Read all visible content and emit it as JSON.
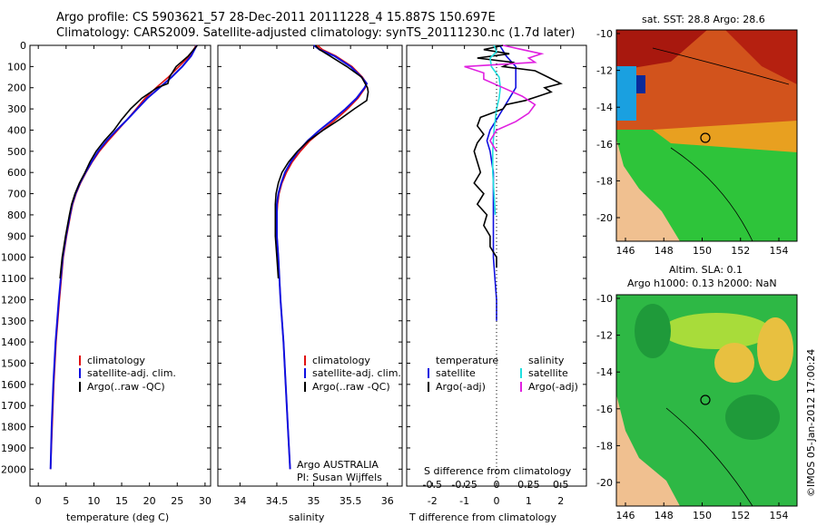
{
  "titles": {
    "line1": "Argo profile: CS 5903621_57 28-Dec-2011 20111228_4 15.887S 150.697E",
    "line2": "Climatology: CARS2009. Satellite-adjusted climatology: synTS_20111230.nc (1.7d later)"
  },
  "colors": {
    "clim": "#e01010",
    "sat": "#1010e0",
    "argo": "#000000",
    "sat_s": "#20e0e0",
    "argo_s": "#e020e0"
  },
  "chart_data": [
    {
      "type": "line",
      "name": "temperature",
      "xlabel": "temperature (deg C)",
      "ylabel": "depth",
      "xlim": [
        -1.5,
        31
      ],
      "ylim": [
        2080,
        0
      ],
      "xticks": [
        0,
        5,
        10,
        15,
        20,
        25,
        30
      ],
      "yticks": [
        0,
        100,
        200,
        300,
        400,
        500,
        600,
        700,
        800,
        900,
        1000,
        1100,
        1200,
        1300,
        1400,
        1500,
        1600,
        1700,
        1800,
        1900,
        2000
      ],
      "legend": [
        "climatology",
        "satellite-adj. clim.",
        "Argo(..raw -QC)"
      ],
      "series": [
        {
          "name": "climatology",
          "depth": [
            0,
            50,
            100,
            150,
            200,
            250,
            300,
            350,
            400,
            450,
            500,
            550,
            600,
            650,
            700,
            750,
            800,
            900,
            1000,
            1200,
            1400,
            1600,
            1800,
            2000
          ],
          "values": [
            28.4,
            27.2,
            25.3,
            23.4,
            21.2,
            19.2,
            17.6,
            16.0,
            14.3,
            12.6,
            11.0,
            9.7,
            8.6,
            7.6,
            6.8,
            6.2,
            5.8,
            5.1,
            4.5,
            3.8,
            3.2,
            2.8,
            2.5,
            2.2
          ]
        },
        {
          "name": "satellite-adj. clim.",
          "depth": [
            0,
            50,
            100,
            150,
            200,
            250,
            300,
            350,
            400,
            450,
            500,
            550,
            600,
            650,
            700,
            750,
            800,
            900,
            1000,
            1200,
            1400,
            1600,
            1800,
            2000
          ],
          "values": [
            28.5,
            27.5,
            25.9,
            24.0,
            21.8,
            19.6,
            17.8,
            16.0,
            14.1,
            12.3,
            10.8,
            9.6,
            8.5,
            7.5,
            6.7,
            6.1,
            5.7,
            5.0,
            4.4,
            3.7,
            3.1,
            2.7,
            2.4,
            2.2
          ]
        },
        {
          "name": "Argo(..raw -QC)",
          "depth": [
            0,
            50,
            100,
            150,
            180,
            200,
            250,
            300,
            350,
            400,
            450,
            500,
            550,
            600,
            650,
            700,
            750,
            800,
            900,
            1000,
            1100
          ],
          "values": [
            28.6,
            27.0,
            24.8,
            23.6,
            23.3,
            21.4,
            18.6,
            16.6,
            15.0,
            13.6,
            11.9,
            10.4,
            9.3,
            8.4,
            7.4,
            6.6,
            6.0,
            5.6,
            4.9,
            4.3,
            3.9
          ]
        }
      ]
    },
    {
      "type": "line",
      "name": "salinity",
      "xlabel": "salinity",
      "xlim": [
        33.7,
        36.2
      ],
      "ylim": [
        2080,
        0
      ],
      "xticks": [
        34,
        34.5,
        35,
        35.5,
        36
      ],
      "legend": [
        "climatology",
        "satellite-adj. clim.",
        "Argo(..raw -QC)"
      ],
      "annotations": [
        "Argo AUSTRALIA",
        "PI: Susan Wijffels"
      ],
      "series": [
        {
          "name": "climatology",
          "depth": [
            0,
            20,
            50,
            100,
            150,
            180,
            200,
            250,
            300,
            350,
            400,
            450,
            500,
            550,
            600,
            650,
            700,
            750,
            800,
            900,
            1000,
            1200,
            1400,
            1600,
            1800,
            2000
          ],
          "values": [
            35.05,
            35.12,
            35.3,
            35.52,
            35.66,
            35.72,
            35.7,
            35.6,
            35.46,
            35.3,
            35.12,
            34.95,
            34.82,
            34.71,
            34.63,
            34.57,
            34.53,
            34.51,
            34.5,
            34.5,
            34.52,
            34.55,
            34.59,
            34.62,
            34.65,
            34.68
          ]
        },
        {
          "name": "satellite-adj. clim.",
          "depth": [
            0,
            20,
            50,
            100,
            150,
            180,
            200,
            250,
            300,
            350,
            400,
            450,
            500,
            550,
            600,
            650,
            700,
            750,
            800,
            900,
            1000,
            1200,
            1400,
            1600,
            1800,
            2000
          ],
          "values": [
            35.0,
            35.08,
            35.28,
            35.5,
            35.65,
            35.72,
            35.69,
            35.58,
            35.43,
            35.26,
            35.08,
            34.92,
            34.79,
            34.69,
            34.61,
            34.56,
            34.52,
            34.5,
            34.5,
            34.5,
            34.52,
            34.55,
            34.59,
            34.62,
            34.65,
            34.68
          ]
        },
        {
          "name": "Argo(..raw -QC)",
          "depth": [
            0,
            20,
            50,
            100,
            150,
            200,
            220,
            260,
            300,
            350,
            400,
            450,
            500,
            550,
            600,
            650,
            700,
            750,
            800,
            900,
            1000,
            1100
          ],
          "values": [
            35.02,
            35.08,
            35.22,
            35.45,
            35.65,
            35.73,
            35.74,
            35.72,
            35.55,
            35.35,
            35.13,
            34.93,
            34.78,
            34.66,
            34.57,
            34.52,
            34.49,
            34.48,
            34.48,
            34.48,
            34.5,
            34.52
          ]
        }
      ]
    },
    {
      "type": "line",
      "name": "difference",
      "xlabel_top": "S difference from climatology",
      "xlabel": "T difference from climatology",
      "xlim": [
        -2.8,
        2.8
      ],
      "ylim": [
        2080,
        0
      ],
      "xticks": [
        -2,
        -1,
        0,
        1,
        2
      ],
      "sticks": [
        -0.5,
        -0.25,
        0,
        0.25,
        0.5
      ],
      "legend_t": [
        "temperature",
        "satellite",
        "Argo(-adj)"
      ],
      "legend_s": [
        "salinity",
        "satellite",
        "Argo(-adj)"
      ],
      "series": [
        {
          "name": "T satellite",
          "depth": [
            0,
            50,
            100,
            150,
            200,
            250,
            300,
            350,
            400,
            450,
            500,
            600,
            700,
            800,
            900,
            1000,
            1100,
            1200,
            1300
          ],
          "values": [
            0.1,
            0.3,
            0.6,
            0.6,
            0.6,
            0.4,
            0.2,
            0.0,
            -0.2,
            -0.3,
            -0.2,
            -0.1,
            -0.1,
            -0.1,
            -0.1,
            -0.1,
            -0.05,
            0,
            0
          ]
        },
        {
          "name": "T Argo(-adj)",
          "depth": [
            0,
            20,
            40,
            60,
            80,
            100,
            120,
            150,
            180,
            200,
            220,
            240,
            260,
            280,
            300,
            340,
            380,
            420,
            460,
            500,
            550,
            600,
            650,
            700,
            750,
            800,
            850,
            900,
            950,
            1000,
            1050
          ],
          "values": [
            0.2,
            -0.4,
            0.4,
            -0.6,
            0.5,
            0.2,
            1.2,
            1.6,
            2.0,
            1.5,
            1.7,
            1.3,
            0.9,
            0.3,
            0.2,
            -0.5,
            -0.6,
            -0.4,
            -0.6,
            -0.7,
            -0.6,
            -0.5,
            -0.7,
            -0.4,
            -0.6,
            -0.3,
            -0.4,
            -0.2,
            -0.2,
            0.0,
            0.0
          ]
        },
        {
          "name": "S satellite",
          "depth": [
            0,
            30,
            60,
            100,
            150,
            200,
            250,
            300,
            400,
            500,
            600,
            700,
            800
          ],
          "values": [
            -0.02,
            0.0,
            -0.05,
            -0.04,
            0.02,
            0.03,
            0.02,
            0.0,
            -0.02,
            -0.03,
            -0.03,
            -0.02,
            -0.01
          ]
        },
        {
          "name": "S Argo(-adj)",
          "depth": [
            0,
            20,
            40,
            60,
            80,
            100,
            130,
            160,
            200,
            240,
            280,
            320,
            360,
            400,
            450,
            500
          ],
          "values": [
            0.05,
            0.2,
            0.35,
            0.25,
            0.3,
            -0.25,
            -0.1,
            -0.1,
            0.05,
            0.2,
            0.3,
            0.25,
            0.15,
            0.0,
            -0.05,
            0.0
          ]
        }
      ]
    }
  ],
  "map_sst": {
    "title": "sat. SST: 28.8 Argo: 28.6",
    "xticks": [
      "146",
      "148",
      "150",
      "152",
      "154"
    ],
    "yticks": [
      "-10",
      "-12",
      "-14",
      "-16",
      "-18",
      "-20"
    ]
  },
  "map_sla": {
    "title1": "Altim. SLA: 0.1",
    "title2": "Argo h1000: 0.13 h2000: NaN",
    "xticks": [
      "146",
      "148",
      "150",
      "152",
      "154"
    ],
    "yticks": [
      "-10",
      "-12",
      "-14",
      "-16",
      "-18",
      "-20"
    ]
  },
  "credit": "©IMOS 05-Jan-2012 17:00:24"
}
